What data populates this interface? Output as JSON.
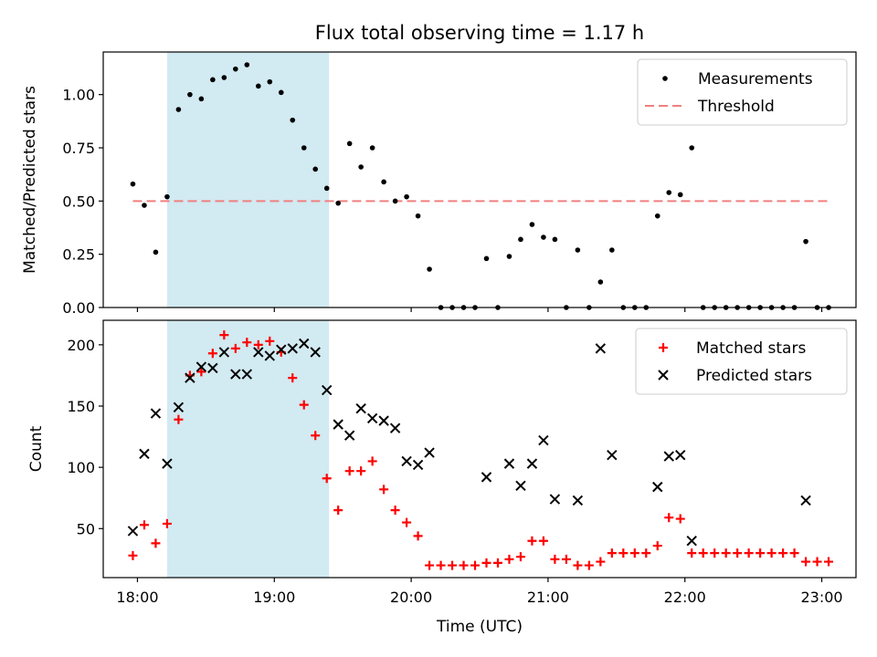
{
  "title": "Flux total observing time = 1.17 h",
  "colors": {
    "measurement": "#000000",
    "threshold": "#f08080",
    "matched": "#ff0000",
    "predicted": "#000000",
    "shade": "#add8e6"
  },
  "chart_data": [
    {
      "type": "scatter",
      "panel": "top",
      "ylabel": "Matched/Predicted stars",
      "xlabel": "",
      "xlim": [
        "17:45",
        "23:15"
      ],
      "ylim": [
        0,
        1.2
      ],
      "yticks": [
        0.0,
        0.25,
        0.5,
        0.75,
        1.0
      ],
      "ytick_labels": [
        "0.00",
        "0.25",
        "0.50",
        "0.75",
        "1.00"
      ],
      "shaded_interval": [
        "18:13",
        "19:24"
      ],
      "legend_position": "upper right",
      "threshold": {
        "name": "Threshold",
        "y": 0.5,
        "x_range": [
          "17:58",
          "23:03"
        ]
      },
      "series": [
        {
          "name": "Measurements",
          "marker": "dot",
          "x": [
            "17:58",
            "18:03",
            "18:08",
            "18:13",
            "18:18",
            "18:23",
            "18:28",
            "18:33",
            "18:38",
            "18:43",
            "18:48",
            "18:53",
            "18:58",
            "19:03",
            "19:08",
            "19:13",
            "19:18",
            "19:23",
            "19:28",
            "19:33",
            "19:38",
            "19:43",
            "19:48",
            "19:53",
            "19:58",
            "20:03",
            "20:08",
            "20:13",
            "20:18",
            "20:23",
            "20:28",
            "20:33",
            "20:38",
            "20:43",
            "20:48",
            "20:53",
            "20:58",
            "21:03",
            "21:08",
            "21:13",
            "21:18",
            "21:23",
            "21:28",
            "21:33",
            "21:38",
            "21:43",
            "21:48",
            "21:53",
            "21:58",
            "22:03",
            "22:08",
            "22:13",
            "22:18",
            "22:23",
            "22:28",
            "22:33",
            "22:38",
            "22:43",
            "22:48",
            "22:53",
            "22:58",
            "23:03"
          ],
          "y": [
            0.58,
            0.48,
            0.26,
            0.52,
            0.93,
            1.0,
            0.98,
            1.07,
            1.08,
            1.12,
            1.14,
            1.04,
            1.06,
            1.01,
            0.88,
            0.75,
            0.65,
            0.56,
            0.49,
            0.77,
            0.66,
            0.75,
            0.59,
            0.5,
            0.52,
            0.43,
            0.18,
            0.0,
            0.0,
            0.0,
            0.0,
            0.23,
            0.0,
            0.24,
            0.32,
            0.39,
            0.33,
            0.32,
            0.0,
            0.27,
            0.0,
            0.12,
            0.27,
            0.0,
            0.0,
            0.0,
            0.43,
            0.54,
            0.53,
            0.75,
            0.0,
            0.0,
            0.0,
            0.0,
            0.0,
            0.0,
            0.0,
            0.0,
            0.0,
            0.31,
            0.0,
            0.0
          ]
        }
      ]
    },
    {
      "type": "scatter",
      "panel": "bottom",
      "xlabel": "Time (UTC)",
      "ylabel": "Count",
      "xlim": [
        "17:45",
        "23:15"
      ],
      "ylim": [
        10,
        220
      ],
      "xticks": [
        "18:00",
        "19:00",
        "20:00",
        "21:00",
        "22:00",
        "23:00"
      ],
      "yticks": [
        50,
        100,
        150,
        200
      ],
      "ytick_labels": [
        "50",
        "100",
        "150",
        "200"
      ],
      "shaded_interval": [
        "18:13",
        "19:24"
      ],
      "legend_position": "upper right",
      "series": [
        {
          "name": "Matched stars",
          "marker": "plus",
          "x": [
            "17:58",
            "18:03",
            "18:08",
            "18:13",
            "18:18",
            "18:23",
            "18:28",
            "18:33",
            "18:38",
            "18:43",
            "18:48",
            "18:53",
            "18:58",
            "19:03",
            "19:08",
            "19:13",
            "19:18",
            "19:23",
            "19:28",
            "19:33",
            "19:38",
            "19:43",
            "19:48",
            "19:53",
            "19:58",
            "20:03",
            "20:08",
            "20:13",
            "20:18",
            "20:23",
            "20:28",
            "20:33",
            "20:38",
            "20:43",
            "20:48",
            "20:53",
            "20:58",
            "21:03",
            "21:08",
            "21:13",
            "21:18",
            "21:23",
            "21:28",
            "21:33",
            "21:38",
            "21:43",
            "21:48",
            "21:53",
            "21:58",
            "22:03",
            "22:08",
            "22:13",
            "22:18",
            "22:23",
            "22:28",
            "22:33",
            "22:38",
            "22:43",
            "22:48",
            "22:53",
            "22:58",
            "23:03"
          ],
          "y": [
            28,
            53,
            38,
            54,
            139,
            175,
            178,
            193,
            208,
            197,
            202,
            200,
            203,
            194,
            173,
            151,
            126,
            91,
            65,
            97,
            97,
            105,
            82,
            65,
            55,
            44,
            20,
            20,
            20,
            20,
            20,
            22,
            22,
            25,
            27,
            40,
            40,
            25,
            25,
            20,
            20,
            23,
            30,
            30,
            30,
            30,
            36,
            59,
            58,
            30,
            30,
            30,
            30,
            30,
            30,
            30,
            30,
            30,
            30,
            23,
            23,
            23
          ]
        },
        {
          "name": "Predicted stars",
          "marker": "x",
          "x": [
            "17:58",
            "18:03",
            "18:08",
            "18:13",
            "18:18",
            "18:23",
            "18:28",
            "18:33",
            "18:38",
            "18:43",
            "18:48",
            "18:53",
            "18:58",
            "19:03",
            "19:08",
            "19:13",
            "19:18",
            "19:23",
            "19:28",
            "19:33",
            "19:38",
            "19:43",
            "19:48",
            "19:53",
            "19:58",
            "20:03",
            "20:08",
            "20:33",
            "20:43",
            "20:48",
            "20:53",
            "20:58",
            "21:03",
            "21:13",
            "21:23",
            "21:28",
            "21:48",
            "21:53",
            "21:58",
            "22:03",
            "22:53"
          ],
          "y": [
            48,
            111,
            144,
            103,
            149,
            173,
            182,
            181,
            194,
            176,
            176,
            194,
            191,
            196,
            197,
            201,
            194,
            163,
            135,
            126,
            148,
            140,
            138,
            132,
            105,
            102,
            112,
            92,
            103,
            85,
            103,
            122,
            74,
            73,
            197,
            110,
            84,
            109,
            110,
            40,
            73
          ]
        }
      ]
    }
  ]
}
